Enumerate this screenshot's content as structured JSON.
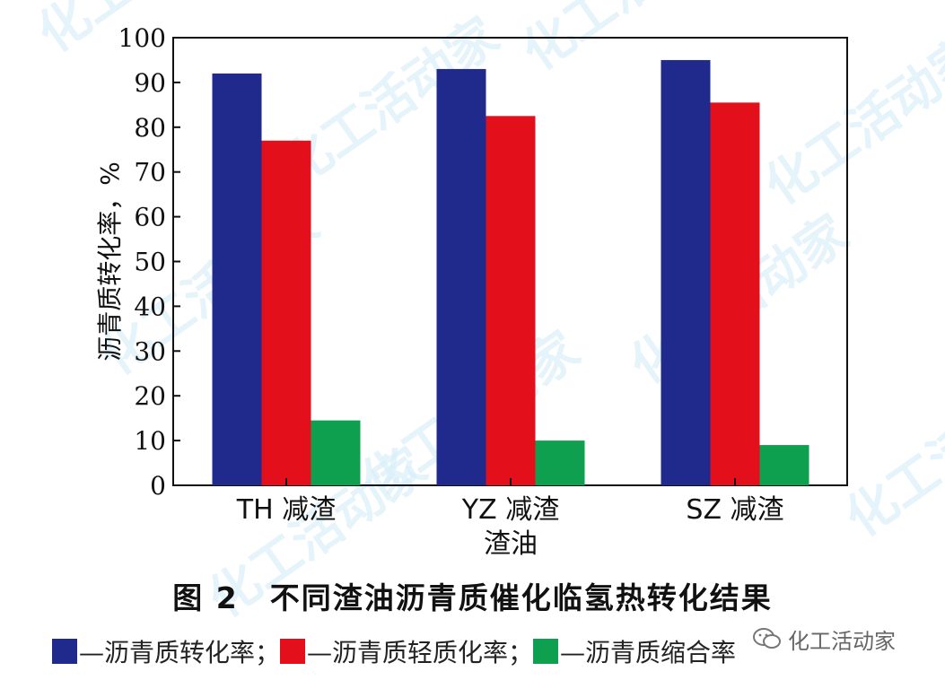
{
  "chart_data": {
    "type": "bar",
    "categories": [
      "TH 减渣",
      "YZ 减渣",
      "SZ 减渣"
    ],
    "xlabel": "渣油",
    "ylabel": "沥青质转化率，%",
    "ylim": [
      0,
      100
    ],
    "yticks": [
      0,
      10,
      20,
      30,
      40,
      50,
      60,
      70,
      80,
      90,
      100
    ],
    "series": [
      {
        "name": "沥青质转化率",
        "color": "#1f2a8c",
        "values": [
          92,
          93,
          95
        ]
      },
      {
        "name": "沥青质轻质化率",
        "color": "#e3101c",
        "values": [
          77,
          82.5,
          85.5
        ]
      },
      {
        "name": "沥青质缩合率",
        "color": "#0fa04f",
        "values": [
          14.5,
          10,
          9
        ]
      }
    ]
  },
  "caption": "图 2　不同渣油沥青质催化临氢热转化结果",
  "legend": [
    {
      "label": "—沥青质转化率；"
    },
    {
      "label": "—沥青质轻质化率；"
    },
    {
      "label": "—沥青质缩合率"
    }
  ],
  "watermark_text": "化工活动家"
}
